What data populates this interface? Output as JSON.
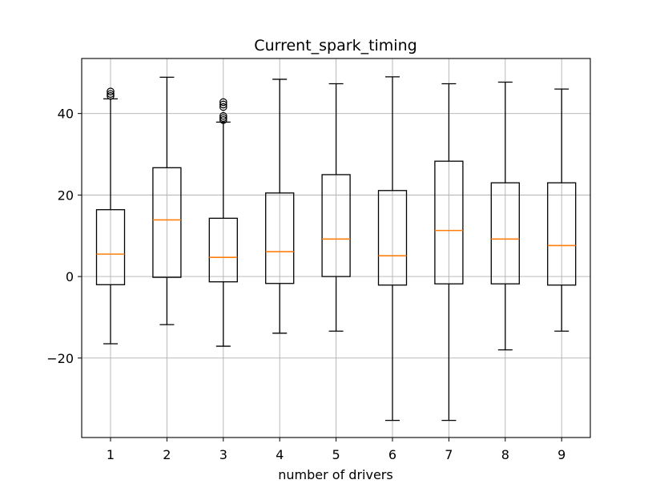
{
  "chart_data": {
    "type": "boxplot",
    "title": "Current_spark_timing",
    "xlabel": "number of drivers",
    "ylabel": "",
    "categories": [
      "1",
      "2",
      "3",
      "4",
      "5",
      "6",
      "7",
      "8",
      "9"
    ],
    "ylim": [
      -39.5,
      53.5
    ],
    "yticks": [
      40,
      20,
      0,
      -20
    ],
    "ytick_labels": [
      "40",
      "20",
      "0",
      "−20"
    ],
    "grid": true,
    "boxes": [
      {
        "label": "1",
        "whislo": -16.5,
        "q1": -2.0,
        "med": 5.5,
        "q3": 16.4,
        "whishi": 43.6,
        "fliers": [
          44.3,
          44.8,
          45.4
        ]
      },
      {
        "label": "2",
        "whislo": -11.8,
        "q1": -0.2,
        "med": 13.9,
        "q3": 26.7,
        "whishi": 48.9,
        "fliers": []
      },
      {
        "label": "3",
        "whislo": -17.1,
        "q1": -1.3,
        "med": 4.7,
        "q3": 14.3,
        "whishi": 37.9,
        "fliers": [
          38.4,
          38.9,
          39.4,
          41.6,
          42.2,
          42.8
        ]
      },
      {
        "label": "4",
        "whislo": -13.9,
        "q1": -1.7,
        "med": 6.1,
        "q3": 20.5,
        "whishi": 48.4,
        "fliers": []
      },
      {
        "label": "5",
        "whislo": -13.4,
        "q1": 0.0,
        "med": 9.2,
        "q3": 25.0,
        "whishi": 47.3,
        "fliers": []
      },
      {
        "label": "6",
        "whislo": -35.3,
        "q1": -2.1,
        "med": 5.1,
        "q3": 21.1,
        "whishi": 49.0,
        "fliers": []
      },
      {
        "label": "7",
        "whislo": -35.3,
        "q1": -1.8,
        "med": 11.3,
        "q3": 28.3,
        "whishi": 47.3,
        "fliers": []
      },
      {
        "label": "8",
        "whislo": -18.0,
        "q1": -1.8,
        "med": 9.2,
        "q3": 23.0,
        "whishi": 47.7,
        "fliers": []
      },
      {
        "label": "9",
        "whislo": -13.4,
        "q1": -2.1,
        "med": 7.6,
        "q3": 23.0,
        "whishi": 46.0,
        "fliers": []
      }
    ],
    "colors": {
      "box": "#000000",
      "median": "#ff7f0e",
      "grid": "#b0b0b0",
      "flier": "#000000"
    }
  }
}
